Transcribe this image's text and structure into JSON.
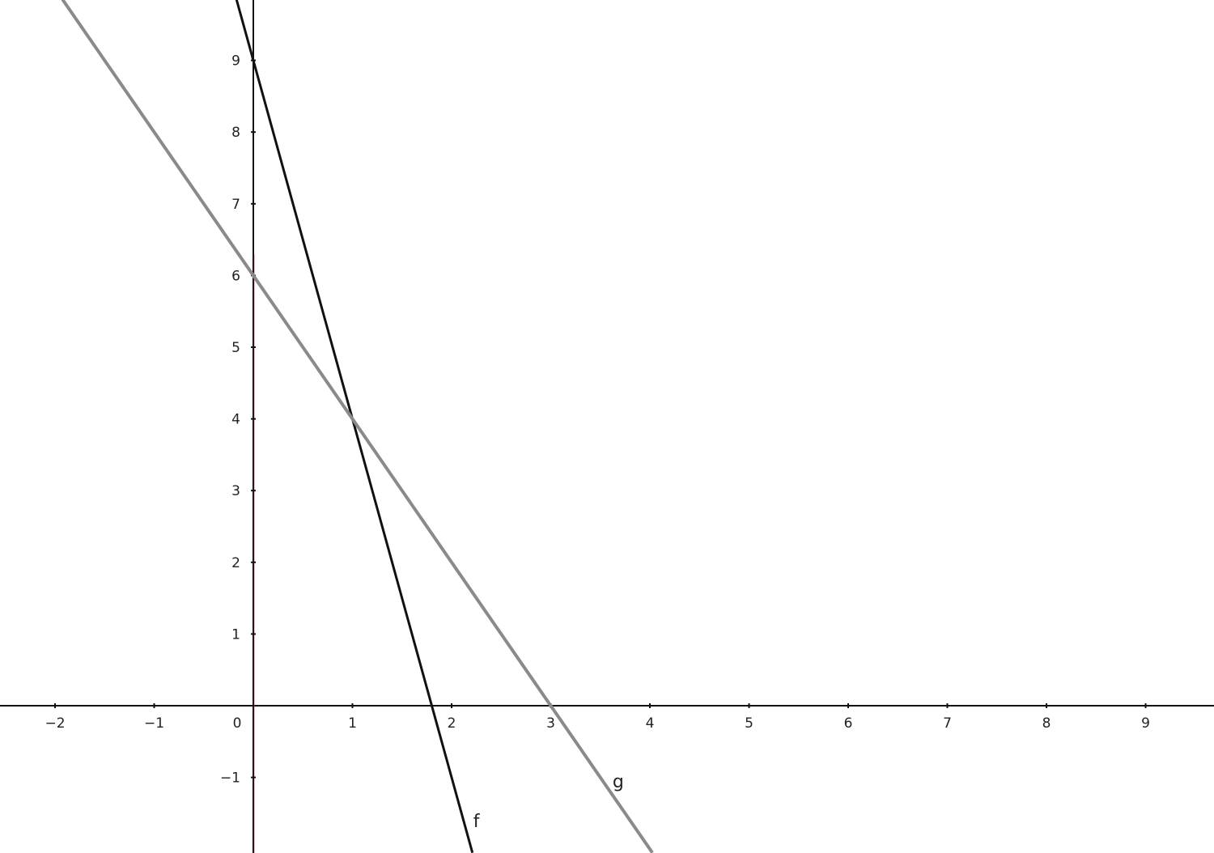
{
  "chart_data": {
    "type": "line",
    "title": "",
    "xlabel": "",
    "ylabel": "",
    "xlim": [
      -2.55,
      9.7
    ],
    "ylim": [
      -2.05,
      9.85
    ],
    "grid": false,
    "x_ticks": [
      -2,
      -1,
      0,
      1,
      2,
      3,
      4,
      5,
      6,
      7,
      8,
      9
    ],
    "x_tick_labels": [
      "−2",
      "−1",
      "0",
      "1",
      "2",
      "3",
      "4",
      "5",
      "6",
      "7",
      "8",
      "9"
    ],
    "y_ticks": [
      -1,
      1,
      2,
      3,
      4,
      5,
      6,
      7,
      8,
      9
    ],
    "y_tick_labels": [
      "−1",
      "1",
      "2",
      "3",
      "4",
      "5",
      "6",
      "7",
      "8",
      "9"
    ],
    "series": [
      {
        "name": "f",
        "slope": -5,
        "intercept": 9,
        "color": "#111111",
        "points": [
          [
            0,
            9
          ],
          [
            1,
            4
          ],
          [
            1.8,
            0
          ]
        ]
      },
      {
        "name": "g",
        "slope": -2,
        "intercept": 6,
        "color": "#8a8a8a",
        "points": [
          [
            0,
            6
          ],
          [
            1,
            4
          ],
          [
            3,
            0
          ]
        ]
      }
    ],
    "axis_color": "#111111",
    "y_axis_accent": "#b0203a"
  }
}
